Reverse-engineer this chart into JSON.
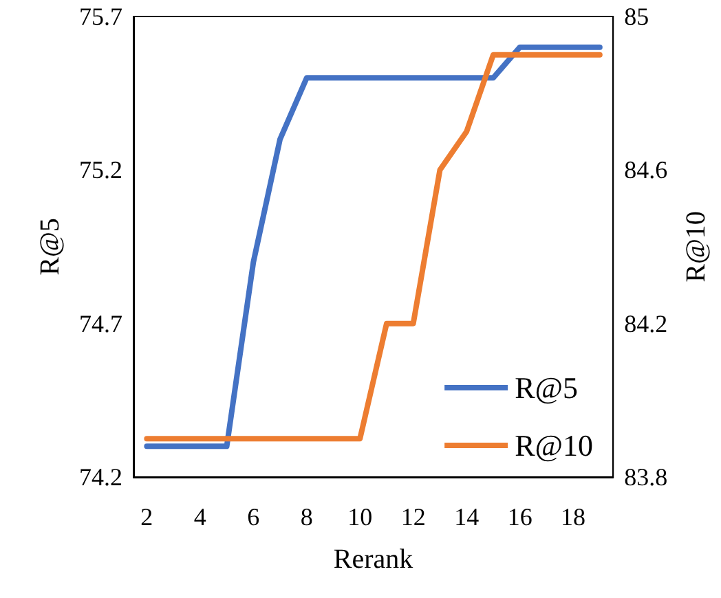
{
  "chart_data": {
    "type": "line",
    "xlabel": "Rerank",
    "ylabel": "R@5",
    "y2label": "R@10",
    "categories": [
      "2",
      null,
      "4",
      null,
      "6",
      null,
      "8",
      null,
      "10",
      null,
      "12",
      null,
      "14",
      null,
      "16",
      null,
      "18",
      null
    ],
    "series": [
      {
        "name": "R@5",
        "color": "#4472c4",
        "values": [
          74.3,
          74.3,
          74.3,
          74.3,
          74.9,
          75.3,
          75.5,
          75.5,
          75.5,
          75.5,
          75.5,
          75.5,
          75.5,
          75.5,
          75.6,
          75.6,
          75.6,
          75.6
        ]
      },
      {
        "name": "R@10",
        "color": "#ed7d31",
        "axis": "y2",
        "values": [
          83.9,
          83.9,
          83.9,
          83.9,
          83.9,
          83.9,
          83.9,
          83.9,
          83.9,
          84.2,
          84.2,
          84.6,
          84.7,
          84.9,
          84.9,
          84.9,
          84.9,
          84.9
        ]
      }
    ],
    "ylim": [
      74.2,
      75.7
    ],
    "yticks": [
      74.2,
      74.7,
      75.2,
      75.7
    ],
    "y2lim": [
      83.8,
      85
    ],
    "y2ticks": [
      83.8,
      84.2,
      84.6,
      85
    ],
    "grid": false,
    "legend": "bottom right",
    "marker": "none",
    "line_style": "solid"
  }
}
